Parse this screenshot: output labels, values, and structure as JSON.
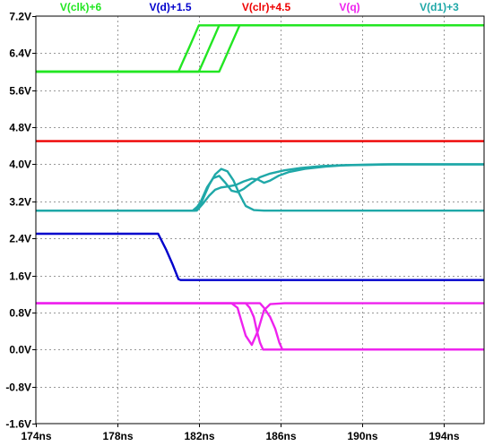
{
  "chart_data": {
    "type": "line",
    "title": "",
    "xlabel": "",
    "ylabel": "",
    "xlim": [
      174,
      196
    ],
    "ylim": [
      -1.6,
      7.2
    ],
    "x_ticks": [
      "174ns",
      "178ns",
      "182ns",
      "186ns",
      "190ns",
      "194ns"
    ],
    "y_ticks": [
      "7.2V",
      "6.4V",
      "5.6V",
      "4.8V",
      "4.0V",
      "3.2V",
      "2.4V",
      "1.6V",
      "0.8V",
      "0.0V",
      "-0.8V",
      "-1.6V"
    ],
    "grid": true,
    "legend_position": "top",
    "series": [
      {
        "name": "V(clk)+6",
        "color": "#22e622",
        "lines": [
          [
            [
              174,
              6.0
            ],
            [
              181.0,
              6.0
            ],
            [
              181.2,
              6.2
            ],
            [
              181.5,
              6.5
            ],
            [
              181.8,
              6.8
            ],
            [
              182.0,
              7.0
            ],
            [
              196,
              7.0
            ]
          ],
          [
            [
              174,
              6.0
            ],
            [
              182.0,
              6.0
            ],
            [
              182.2,
              6.2
            ],
            [
              182.5,
              6.5
            ],
            [
              182.8,
              6.8
            ],
            [
              183.0,
              7.0
            ],
            [
              196,
              7.0
            ]
          ],
          [
            [
              174,
              6.0
            ],
            [
              183.0,
              6.0
            ],
            [
              183.2,
              6.2
            ],
            [
              183.5,
              6.5
            ],
            [
              183.8,
              6.8
            ],
            [
              184.0,
              7.0
            ],
            [
              196,
              7.0
            ]
          ]
        ]
      },
      {
        "name": "V(d)+1.5",
        "color": "#0000cc",
        "lines": [
          [
            [
              174,
              2.5
            ],
            [
              180.0,
              2.5
            ],
            [
              180.4,
              2.15
            ],
            [
              180.7,
              1.85
            ],
            [
              181.0,
              1.52
            ],
            [
              181.1,
              1.5
            ],
            [
              196,
              1.5
            ]
          ]
        ]
      },
      {
        "name": "V(clr)+4.5",
        "color": "#ee0000",
        "lines": [
          [
            [
              174,
              4.5
            ],
            [
              196,
              4.5
            ]
          ]
        ]
      },
      {
        "name": "V(q)",
        "color": "#ee22ee",
        "lines": [
          [
            [
              174,
              1.0
            ],
            [
              183.6,
              1.0
            ],
            [
              183.9,
              0.9
            ],
            [
              184.1,
              0.6
            ],
            [
              184.3,
              0.3
            ],
            [
              184.6,
              0.1
            ],
            [
              184.9,
              0.4
            ],
            [
              185.2,
              0.85
            ],
            [
              185.5,
              0.98
            ],
            [
              186.2,
              1.0
            ],
            [
              196,
              1.0
            ]
          ],
          [
            [
              174,
              1.0
            ],
            [
              184.3,
              1.0
            ],
            [
              184.5,
              0.9
            ],
            [
              184.7,
              0.7
            ],
            [
              184.85,
              0.4
            ],
            [
              185.0,
              0.15
            ],
            [
              185.15,
              0.0
            ],
            [
              196,
              0.0
            ]
          ],
          [
            [
              174,
              1.0
            ],
            [
              185.0,
              1.0
            ],
            [
              185.2,
              0.9
            ],
            [
              185.5,
              0.7
            ],
            [
              185.75,
              0.45
            ],
            [
              185.95,
              0.15
            ],
            [
              186.1,
              0.0
            ],
            [
              196,
              0.0
            ]
          ]
        ]
      },
      {
        "name": "V(d1)+3",
        "color": "#1fa8a8",
        "lines": [
          [
            [
              174,
              3.0
            ],
            [
              181.7,
              3.0
            ],
            [
              182.1,
              3.15
            ],
            [
              182.5,
              3.55
            ],
            [
              182.8,
              3.78
            ],
            [
              183.1,
              3.9
            ],
            [
              183.4,
              3.85
            ],
            [
              183.7,
              3.65
            ],
            [
              184.0,
              3.35
            ],
            [
              184.3,
              3.1
            ],
            [
              184.7,
              3.01
            ],
            [
              185.2,
              3.0
            ],
            [
              196,
              3.0
            ]
          ],
          [
            [
              174,
              3.0
            ],
            [
              181.8,
              3.0
            ],
            [
              182.1,
              3.2
            ],
            [
              182.4,
              3.5
            ],
            [
              182.7,
              3.7
            ],
            [
              183.0,
              3.75
            ],
            [
              183.3,
              3.6
            ],
            [
              183.6,
              3.43
            ],
            [
              183.9,
              3.4
            ],
            [
              184.2,
              3.47
            ],
            [
              184.6,
              3.6
            ],
            [
              185.0,
              3.72
            ],
            [
              185.5,
              3.8
            ],
            [
              186.2,
              3.87
            ],
            [
              187.0,
              3.92
            ],
            [
              188.0,
              3.96
            ],
            [
              189.0,
              3.98
            ],
            [
              190.0,
              3.99
            ],
            [
              191.0,
              4.0
            ],
            [
              196,
              4.0
            ]
          ],
          [
            [
              174,
              3.0
            ],
            [
              181.9,
              3.0
            ],
            [
              182.2,
              3.15
            ],
            [
              182.5,
              3.32
            ],
            [
              182.8,
              3.45
            ],
            [
              183.1,
              3.5
            ],
            [
              183.4,
              3.52
            ],
            [
              183.8,
              3.55
            ],
            [
              184.2,
              3.63
            ],
            [
              184.6,
              3.69
            ],
            [
              184.9,
              3.67
            ],
            [
              185.2,
              3.6
            ],
            [
              185.5,
              3.65
            ],
            [
              185.9,
              3.75
            ],
            [
              186.4,
              3.83
            ],
            [
              187.2,
              3.9
            ],
            [
              188.2,
              3.95
            ],
            [
              189.2,
              3.98
            ],
            [
              190.5,
              3.99
            ],
            [
              191.5,
              4.0
            ],
            [
              196,
              4.0
            ]
          ]
        ]
      }
    ]
  }
}
